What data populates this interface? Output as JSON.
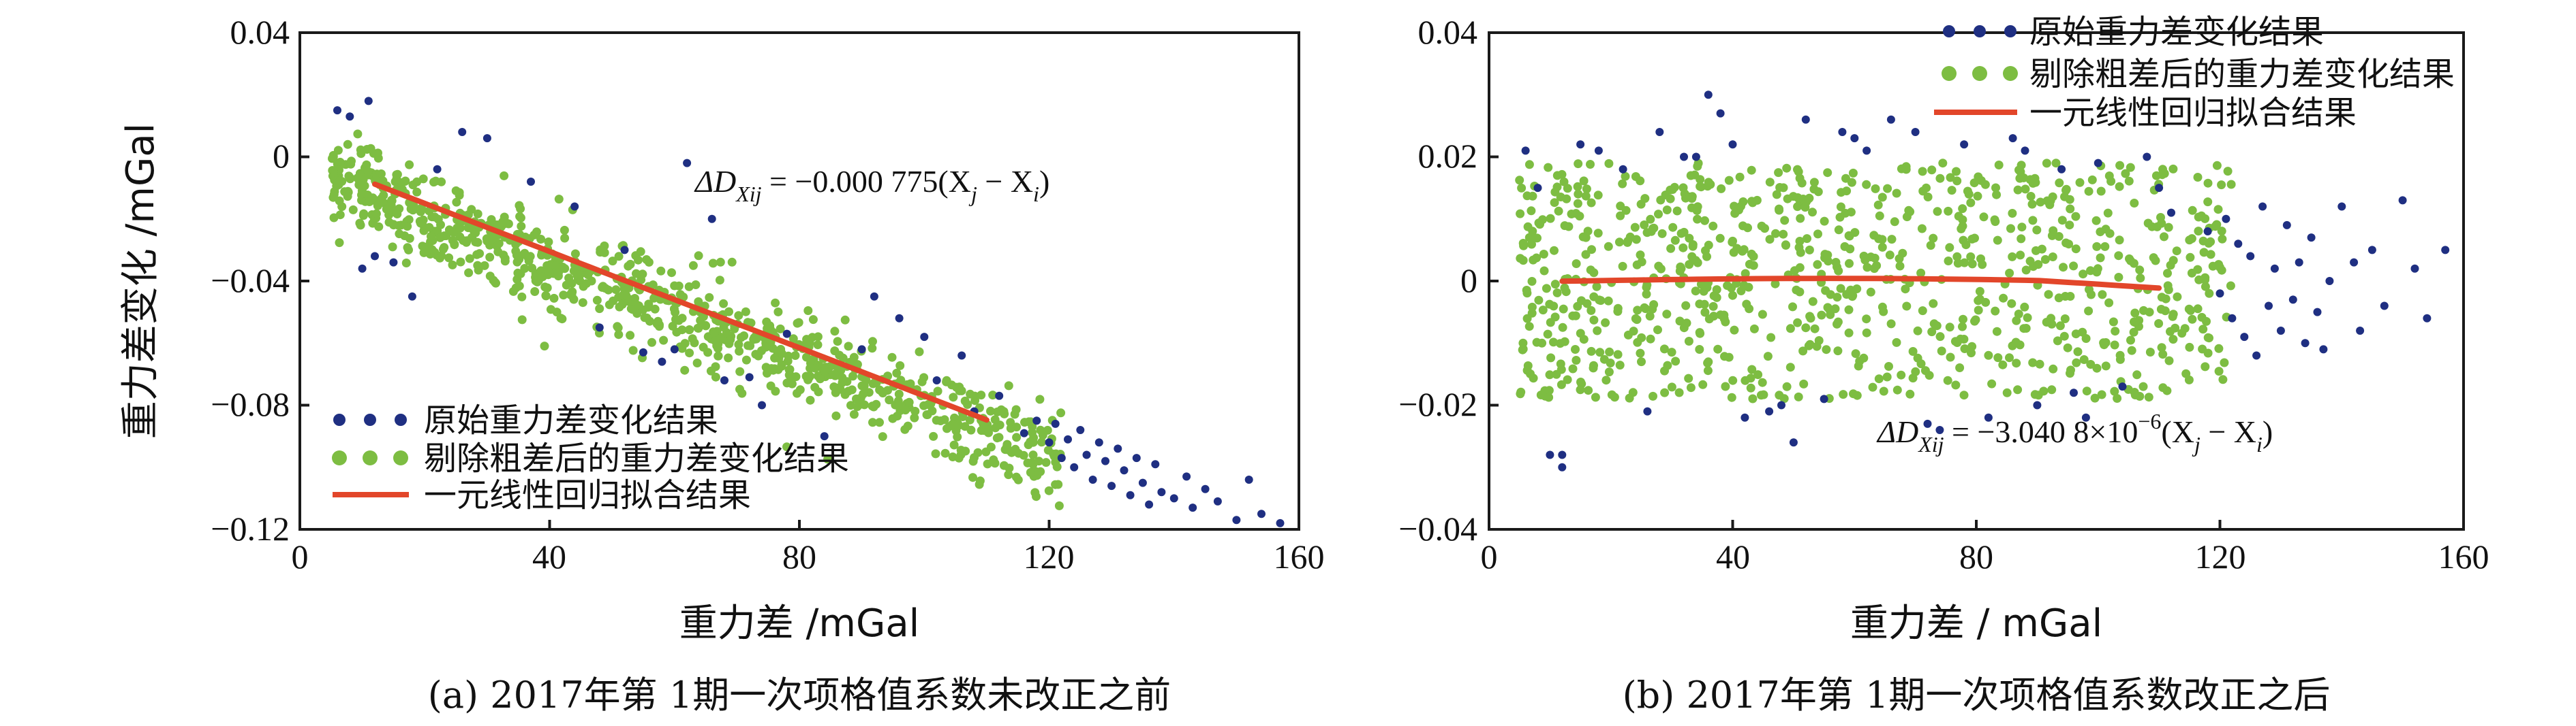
{
  "colors": {
    "raw": "#1f2f82",
    "cleaned": "#7dbd42",
    "fit": "#e2462a",
    "axis": "#1a1a1a"
  },
  "chart_data": [
    {
      "type": "scatter",
      "id": "a",
      "caption": "(a) 2017年第 1期一次项格值系数未改正之前",
      "xlabel": "重力差 /mGal",
      "ylabel": "重力差变化 /mGal",
      "xlim": [
        0,
        160
      ],
      "ylim": [
        -0.12,
        0.04
      ],
      "xticks": [
        0,
        40,
        80,
        120,
        160
      ],
      "yticks": [
        0.04,
        0,
        -0.04,
        -0.08,
        -0.12
      ],
      "xtick_labels": [
        "0",
        "40",
        "80",
        "120",
        "160"
      ],
      "ytick_labels": [
        "0.04",
        "0",
        "−0.04",
        "−0.08",
        "−0.12"
      ],
      "legend": {
        "position": "bottom-left",
        "entries": [
          "原始重力差变化结果",
          "剔除粗差后的重力差变化结果",
          "一元线性回归拟合结果"
        ]
      },
      "equation": {
        "lhs": "ΔD",
        "sub": "Xij",
        "rhs": " = −0.000 775(X",
        "j": "j",
        "mid": " − X",
        "i": "i",
        "end": ")"
      },
      "fit": {
        "slope": -0.000775,
        "intercept": 0.0005,
        "x": [
          12,
          110
        ]
      },
      "raw_points": {
        "description": "outlier points (blue)",
        "x": [
          6,
          8,
          11,
          12,
          15,
          22,
          30,
          37,
          48,
          55,
          60,
          62,
          68,
          72,
          78,
          84,
          90,
          96,
          102,
          108,
          112,
          118,
          120,
          121,
          122,
          123,
          124,
          125,
          126,
          127,
          128,
          129,
          130,
          131,
          132,
          133,
          134,
          135,
          136,
          137,
          138,
          140,
          142,
          143,
          145,
          147,
          150,
          152,
          154,
          157,
          10,
          18,
          26,
          44,
          52,
          58,
          66,
          74,
          92,
          100,
          106,
          116
        ],
        "y": [
          0.015,
          0.013,
          0.018,
          -0.032,
          -0.034,
          -0.004,
          0.006,
          -0.008,
          -0.055,
          -0.063,
          -0.062,
          -0.002,
          -0.072,
          -0.071,
          -0.057,
          -0.09,
          -0.062,
          -0.052,
          -0.072,
          -0.082,
          -0.077,
          -0.085,
          -0.092,
          -0.086,
          -0.097,
          -0.091,
          -0.1,
          -0.088,
          -0.096,
          -0.104,
          -0.092,
          -0.098,
          -0.106,
          -0.094,
          -0.101,
          -0.109,
          -0.097,
          -0.105,
          -0.112,
          -0.099,
          -0.108,
          -0.11,
          -0.103,
          -0.113,
          -0.107,
          -0.111,
          -0.117,
          -0.104,
          -0.115,
          -0.118,
          -0.036,
          -0.045,
          0.008,
          -0.016,
          -0.03,
          -0.066,
          -0.02,
          -0.08,
          -0.045,
          -0.058,
          -0.064,
          -0.089
        ]
      },
      "clean_points": {
        "description": "cleaned points (green), follows trend y ≈ -0.000775x with scatter",
        "x_range": [
          5,
          122
        ],
        "count": 900,
        "center_slope": -0.000775,
        "center_intercept": -0.003,
        "spread": 0.013
      }
    },
    {
      "type": "scatter",
      "id": "b",
      "caption": "(b) 2017年第 1期一次项格值系数改正之后",
      "xlabel": "重力差 / mGal",
      "ylabel": "",
      "xlim": [
        0,
        160
      ],
      "ylim": [
        -0.04,
        0.04
      ],
      "xticks": [
        0,
        40,
        80,
        120,
        160
      ],
      "yticks": [
        0.04,
        0.02,
        0,
        -0.02,
        -0.04
      ],
      "xtick_labels": [
        "0",
        "40",
        "80",
        "120",
        "160"
      ],
      "ytick_labels": [
        "0.04",
        "0.02",
        "0",
        "−0.02",
        "−0.04"
      ],
      "legend": {
        "position": "top-right",
        "entries": [
          "原始重力差变化结果",
          "剔除粗差后的重力差变化结果",
          "一元线性回归拟合结果"
        ]
      },
      "equation": {
        "lhs": "ΔD",
        "sub": "Xij",
        "rhs": " = −3.040 8×10",
        "sup": "−6",
        "paren": "(X",
        "j": "j",
        "mid": " − X",
        "i": "i",
        "end": ")"
      },
      "fit": {
        "slope": -3.0408e-06,
        "intercept": 0.0,
        "x": [
          12,
          110
        ]
      },
      "raw_points": {
        "description": "outlier points (blue)",
        "x": [
          6,
          8,
          10,
          12,
          15,
          18,
          22,
          28,
          32,
          36,
          38,
          40,
          42,
          46,
          50,
          52,
          55,
          58,
          62,
          66,
          70,
          74,
          78,
          82,
          86,
          90,
          94,
          96,
          100,
          104,
          108,
          110,
          112,
          118,
          120,
          121,
          122,
          123,
          124,
          125,
          126,
          127,
          128,
          129,
          130,
          131,
          132,
          133,
          134,
          135,
          136,
          137,
          138,
          140,
          142,
          143,
          145,
          147,
          150,
          152,
          154,
          157,
          12,
          26,
          34,
          48,
          60,
          72,
          88,
          98
        ],
        "y": [
          0.021,
          0.015,
          -0.028,
          -0.03,
          0.022,
          0.021,
          0.018,
          0.024,
          0.02,
          0.03,
          0.027,
          0.022,
          -0.022,
          -0.021,
          -0.026,
          0.026,
          -0.019,
          0.024,
          0.021,
          0.026,
          0.024,
          -0.024,
          0.022,
          -0.022,
          0.023,
          -0.02,
          0.018,
          -0.018,
          0.019,
          -0.017,
          0.02,
          0.015,
          0.011,
          0.008,
          -0.002,
          0.01,
          -0.006,
          0.006,
          -0.009,
          0.004,
          -0.012,
          0.012,
          -0.004,
          0.002,
          -0.008,
          0.009,
          -0.003,
          0.003,
          -0.01,
          0.007,
          -0.005,
          -0.011,
          0.0,
          0.012,
          0.003,
          -0.008,
          0.005,
          -0.004,
          0.013,
          0.002,
          -0.006,
          0.005,
          -0.028,
          -0.021,
          0.02,
          -0.02,
          0.023,
          -0.023,
          0.021,
          -0.022
        ]
      },
      "clean_points": {
        "description": "cleaned points (green), uniform band around zero",
        "x_range": [
          5,
          122
        ],
        "count": 900,
        "center_slope": 0,
        "center_intercept": 0,
        "spread": 0.019
      }
    }
  ]
}
